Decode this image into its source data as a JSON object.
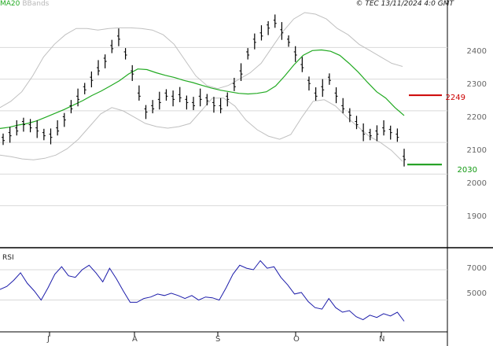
{
  "legend": {
    "ma_label": "MA20",
    "bb_label": "BBands"
  },
  "copyright": "© TEC 13/11/2024 4:0 GMT",
  "rsi_label": "RSI",
  "colors": {
    "price": "#000000",
    "ma20": "#22aa22",
    "bbands": "#c0c0c0",
    "rsi": "#1c1caa",
    "level_red": "#cc0000",
    "level_green": "#119911",
    "grid": "#d9d9d9"
  },
  "chart_data": [
    {
      "type": "line",
      "subtype": "bar-ohlc",
      "title": "",
      "ylim": [
        1770,
        2520
      ],
      "y_ticks": [
        "2400",
        "2300",
        "2200",
        "2100",
        "2000",
        "1900"
      ],
      "x_ticks": [
        "J",
        "A",
        "S",
        "O",
        "N"
      ],
      "levels": [
        {
          "label": "2249",
          "value": 2249,
          "color": "#cc0000"
        },
        {
          "label": "2030",
          "value": 2030,
          "color": "#119911"
        }
      ],
      "series": [
        {
          "name": "MA20",
          "values": [
            2144,
            2148,
            2155,
            2160,
            2168,
            2180,
            2192,
            2204,
            2218,
            2232,
            2248,
            2262,
            2278,
            2295,
            2316,
            2332,
            2330,
            2320,
            2312,
            2305,
            2296,
            2289,
            2280,
            2272,
            2265,
            2260,
            2255,
            2253,
            2255,
            2260,
            2278,
            2310,
            2345,
            2375,
            2390,
            2392,
            2388,
            2375,
            2350,
            2322,
            2290,
            2260,
            2240,
            2210,
            2185
          ]
        },
        {
          "name": "BBands upper",
          "values": [
            2210,
            2230,
            2260,
            2310,
            2370,
            2410,
            2440,
            2460,
            2460,
            2455,
            2460,
            2462,
            2462,
            2460,
            2455,
            2440,
            2410,
            2360,
            2310,
            2280,
            2270,
            2280,
            2300,
            2320,
            2350,
            2400,
            2450,
            2490,
            2510,
            2505,
            2490,
            2460,
            2440,
            2410,
            2390,
            2370,
            2350,
            2340
          ]
        },
        {
          "name": "BBands lower",
          "values": [
            2060,
            2055,
            2048,
            2045,
            2050,
            2060,
            2080,
            2110,
            2150,
            2190,
            2210,
            2200,
            2180,
            2160,
            2150,
            2145,
            2150,
            2160,
            2200,
            2240,
            2240,
            2215,
            2170,
            2140,
            2120,
            2110,
            2125,
            2180,
            2230,
            2235,
            2215,
            2180,
            2150,
            2120,
            2100,
            2075,
            2040
          ]
        },
        {
          "name": "Price",
          "values": [
            2110,
            2125,
            2140,
            2160,
            2150,
            2140,
            2125,
            2120,
            2140,
            2175,
            2210,
            2240,
            2270,
            2300,
            2330,
            2360,
            2400,
            2430,
            2380,
            2320,
            2250,
            2200,
            2210,
            2230,
            2250,
            2240,
            2245,
            2230,
            2220,
            2240,
            2235,
            2220,
            2210,
            2240,
            2280,
            2320,
            2380,
            2420,
            2440,
            2465,
            2480,
            2450,
            2420,
            2380,
            2340,
            2290,
            2250,
            2270,
            2300,
            2250,
            2210,
            2190,
            2160,
            2130,
            2125,
            2130,
            2140,
            2135,
            2120,
            2050
          ]
        },
        {
          "name": "RSI",
          "values": [
            5700,
            5900,
            6300,
            6800,
            6100,
            5600,
            5000,
            5800,
            6700,
            7200,
            6600,
            6500,
            7000,
            7300,
            6800,
            6200,
            7100,
            6400,
            5600,
            4850,
            4850,
            5100,
            5200,
            5400,
            5300,
            5450,
            5300,
            5100,
            5300,
            5000,
            5200,
            5150,
            5000,
            5800,
            6700,
            7300,
            7100,
            7000,
            7600,
            7100,
            7200,
            6500,
            6000,
            5400,
            5500,
            4900,
            4500,
            4400,
            5100,
            4500,
            4200,
            4300,
            3900,
            3700,
            4000,
            3850,
            4100,
            3950,
            4200,
            3600
          ]
        }
      ]
    },
    {
      "type": "line",
      "name": "RSI panel",
      "y_ticks": [
        "7000",
        "5000"
      ]
    }
  ]
}
